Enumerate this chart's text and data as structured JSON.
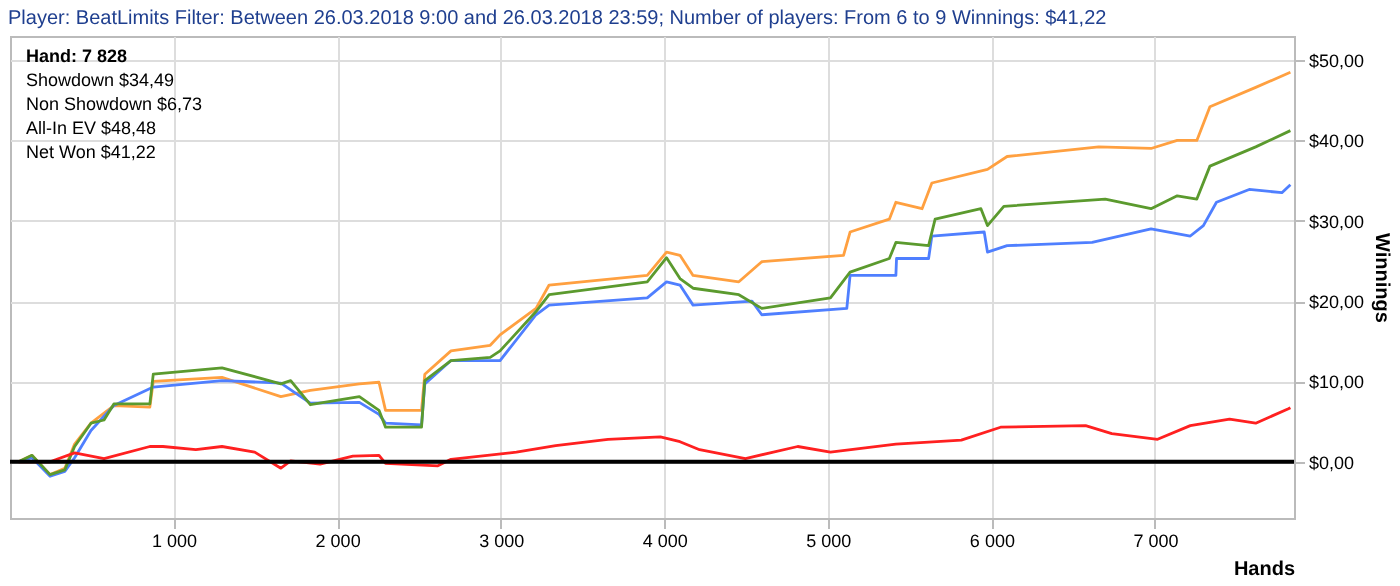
{
  "chart_data": {
    "type": "line",
    "title": "Player: BeatLimits Filter: Between 26.03.2018 9:00 and 26.03.2018 23:59; Number of players: From 6 to 9 Winnings: $41,22",
    "xlabel": "Hands",
    "ylabel": "Winnings",
    "annotations": [
      "Hand: 7 828",
      "Showdown $34,49",
      "Non Showdown $6,73",
      "All-In EV $48,48",
      "Net Won $41,22"
    ],
    "xlim": [
      0,
      7850
    ],
    "xticks": [
      {
        "value": 1000,
        "label": "1 000"
      },
      {
        "value": 2000,
        "label": "2 000"
      },
      {
        "value": 3000,
        "label": "3 000"
      },
      {
        "value": 4000,
        "label": "4 000"
      },
      {
        "value": 5000,
        "label": "5 000"
      },
      {
        "value": 6000,
        "label": "6 000"
      },
      {
        "value": 7000,
        "label": "7 000"
      }
    ],
    "ylim": [
      -7,
      53
    ],
    "yticks": [
      {
        "value": 0,
        "label": "$0,00"
      },
      {
        "value": 10,
        "label": "$10,00"
      },
      {
        "value": 20,
        "label": "$20,00"
      },
      {
        "value": 30,
        "label": "$30,00"
      },
      {
        "value": 40,
        "label": "$40,00"
      },
      {
        "value": 50,
        "label": "$50,00"
      }
    ],
    "grid": true,
    "line_style": "solid",
    "marker": "none",
    "ref_lines": [
      {
        "axis": "y",
        "value": 0,
        "label": null,
        "color": "#000000"
      }
    ],
    "series": [
      {
        "color": "#ffa040",
        "x": [
          52,
          135,
          245,
          335,
          395,
          495,
          635,
          855,
          876,
          1296,
          1656,
          1836,
          2136,
          2256,
          2296,
          2516,
          2536,
          2696,
          2936,
          2996,
          3216,
          3296,
          3896,
          4014,
          4096,
          4176,
          4456,
          4596,
          5096,
          5136,
          5376,
          5416,
          5576,
          5636,
          5976,
          6096,
          6656,
          6976,
          7136,
          7256,
          7336,
          7616,
          7828
        ],
        "values": [
          0,
          0.8,
          -1.6,
          -0.8,
          2.2,
          4.8,
          7.0,
          6.8,
          10.0,
          10.5,
          8.1,
          8.9,
          9.7,
          9.9,
          6.4,
          6.4,
          10.9,
          13.8,
          14.5,
          15.8,
          19.1,
          22.0,
          23.2,
          26.1,
          25.7,
          23.2,
          22.4,
          24.9,
          25.7,
          28.6,
          30.2,
          32.3,
          31.5,
          34.7,
          36.4,
          38.0,
          39.2,
          39.0,
          40.0,
          40.0,
          44.2,
          46.6,
          48.48
        ]
      },
      {
        "color": "#4f7fff",
        "x": [
          52,
          135,
          245,
          335,
          395,
          495,
          635,
          876,
          1296,
          1656,
          1836,
          2136,
          2256,
          2296,
          2516,
          2536,
          2696,
          2996,
          3216,
          3296,
          3896,
          4014,
          4096,
          4176,
          4536,
          4596,
          5116,
          5136,
          5416,
          5420,
          5616,
          5636,
          5956,
          5976,
          6096,
          6616,
          6976,
          7216,
          7296,
          7376,
          7576,
          7776,
          7828
        ],
        "values": [
          0,
          0.5,
          -1.8,
          -1.2,
          0.5,
          3.9,
          7.0,
          9.3,
          10.1,
          9.8,
          7.3,
          7.4,
          5.9,
          4.8,
          4.6,
          9.7,
          12.6,
          12.6,
          18.3,
          19.5,
          20.4,
          22.4,
          22.0,
          19.5,
          20.0,
          18.3,
          19.1,
          23.2,
          23.2,
          25.3,
          25.3,
          28.1,
          28.6,
          26.1,
          26.9,
          27.3,
          29.0,
          28.1,
          29.4,
          32.3,
          33.9,
          33.5,
          34.49
        ]
      },
      {
        "color": "#5b9a2e",
        "x": [
          52,
          135,
          245,
          335,
          395,
          495,
          575,
          635,
          855,
          876,
          1296,
          1656,
          1716,
          1836,
          2136,
          2256,
          2296,
          2516,
          2536,
          2696,
          2936,
          2996,
          3216,
          3296,
          3896,
          4014,
          4096,
          4176,
          4456,
          4596,
          5016,
          5136,
          5376,
          5416,
          5616,
          5656,
          5936,
          5976,
          6076,
          6696,
          6976,
          7136,
          7256,
          7336,
          7616,
          7828
        ],
        "values": [
          0,
          0.8,
          -1.6,
          -1.0,
          1.9,
          4.8,
          5.2,
          7.2,
          7.2,
          10.9,
          11.7,
          9.7,
          10.1,
          7.1,
          8.1,
          6.4,
          4.3,
          4.3,
          10.1,
          12.6,
          13.0,
          13.8,
          18.7,
          20.8,
          22.4,
          25.4,
          22.8,
          21.6,
          20.8,
          19.1,
          20.4,
          23.6,
          25.3,
          27.3,
          26.9,
          30.2,
          31.5,
          29.4,
          31.8,
          32.7,
          31.5,
          33.1,
          32.7,
          36.8,
          39.2,
          41.22
        ]
      },
      {
        "color": "#ff2020",
        "x": [
          52,
          245,
          395,
          575,
          855,
          935,
          1136,
          1296,
          1496,
          1656,
          1716,
          1896,
          2096,
          2256,
          2296,
          2616,
          2696,
          3096,
          3336,
          3656,
          3976,
          4096,
          4216,
          4496,
          4816,
          5016,
          5416,
          5816,
          6056,
          6576,
          6736,
          7016,
          7216,
          7456,
          7616,
          7816,
          7828
        ],
        "values": [
          0,
          0,
          1.1,
          0.4,
          1.9,
          1.9,
          1.5,
          1.9,
          1.2,
          -0.8,
          0.1,
          -0.3,
          0.7,
          0.8,
          -0.2,
          -0.5,
          0.3,
          1.2,
          2.0,
          2.8,
          3.1,
          2.5,
          1.5,
          0.4,
          1.9,
          1.2,
          2.2,
          2.7,
          4.3,
          4.5,
          3.5,
          2.8,
          4.5,
          5.3,
          4.8,
          6.6,
          6.73
        ]
      }
    ]
  }
}
